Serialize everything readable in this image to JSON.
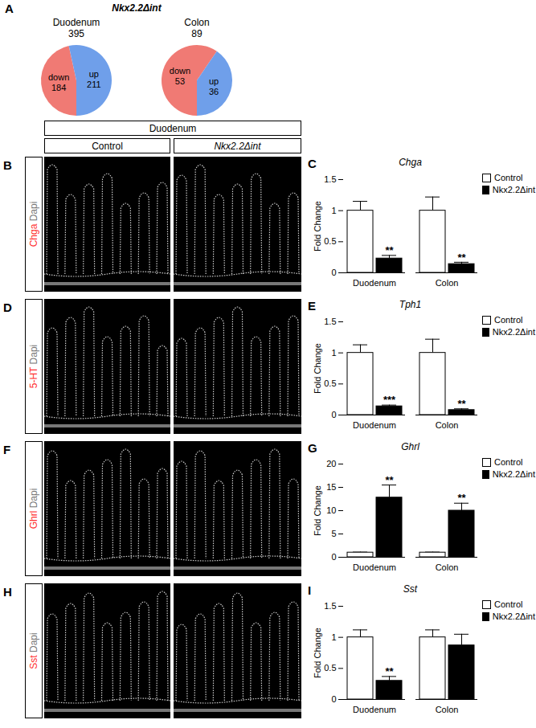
{
  "panel_a": {
    "panel": "A",
    "title": "Nkx2.2Δint"
  },
  "image_panels": {
    "section_title": "Duodenum",
    "columns": [
      "Control",
      "Nkx2.2Δint"
    ],
    "rows": [
      {
        "panel": "B",
        "stain": "Chga",
        "counterstain": "Dapi",
        "stain_color": "#ff3030"
      },
      {
        "panel": "D",
        "stain": "5-HT",
        "counterstain": "Dapi",
        "stain_color": "#ff3030"
      },
      {
        "panel": "F",
        "stain": "Ghrl",
        "counterstain": "Dapi",
        "stain_color": "#ff3030"
      },
      {
        "panel": "H",
        "stain": "Sst",
        "counterstain": "Dapi",
        "stain_color": "#ff3030"
      }
    ]
  },
  "chart_data": [
    {
      "type": "pie",
      "title": "Duodenum",
      "total": 395,
      "categories": [
        "down",
        "up"
      ],
      "values": [
        184,
        211
      ],
      "colors": [
        "#f07a74",
        "#6f9fea"
      ],
      "data_labels": true
    },
    {
      "type": "pie",
      "title": "Colon",
      "total": 89,
      "categories": [
        "down",
        "up"
      ],
      "values": [
        53,
        36
      ],
      "colors": [
        "#f07a74",
        "#6f9fea"
      ],
      "data_labels": true
    },
    {
      "type": "bar",
      "panel": "C",
      "title": "Chga",
      "ylabel": "Fold Change",
      "categories": [
        "Duodenum",
        "Colon"
      ],
      "series": [
        {
          "name": "Control",
          "color": "#ffffff",
          "values": [
            1,
            1
          ],
          "errors": [
            0.15,
            0.22
          ]
        },
        {
          "name": "Nkx2.2Δint",
          "color": "#000000",
          "values": [
            0.23,
            0.14
          ],
          "errors": [
            0.05,
            0.03
          ],
          "significance": [
            "**",
            "**"
          ]
        }
      ],
      "ylim": [
        0,
        1.5
      ],
      "yticks": [
        0,
        0.5,
        1,
        1.5
      ],
      "legend": "top-right"
    },
    {
      "type": "bar",
      "panel": "E",
      "title": "Tph1",
      "ylabel": "Fold Change",
      "categories": [
        "Duodenum",
        "Colon"
      ],
      "series": [
        {
          "name": "Control",
          "color": "#ffffff",
          "values": [
            1,
            1
          ],
          "errors": [
            0.13,
            0.22
          ]
        },
        {
          "name": "Nkx2.2Δint",
          "color": "#000000",
          "values": [
            0.14,
            0.08
          ],
          "errors": [
            0.02,
            0.02
          ],
          "significance": [
            "***",
            "**"
          ]
        }
      ],
      "ylim": [
        0,
        1.5
      ],
      "yticks": [
        0,
        0.5,
        1,
        1.5
      ],
      "legend": "top-right"
    },
    {
      "type": "bar",
      "panel": "G",
      "title": "Ghrl",
      "ylabel": "Fold Change",
      "categories": [
        "Duodenum",
        "Colon"
      ],
      "series": [
        {
          "name": "Control",
          "color": "#ffffff",
          "values": [
            1,
            1
          ],
          "errors": [
            0.1,
            0.1
          ]
        },
        {
          "name": "Nkx2.2Δint",
          "color": "#000000",
          "values": [
            12.8,
            10
          ],
          "errors": [
            2.7,
            1.6
          ],
          "significance": [
            "**",
            "**"
          ]
        }
      ],
      "ylim": [
        0,
        20
      ],
      "yticks": [
        0,
        5,
        10,
        15,
        20
      ],
      "legend": "top-right"
    },
    {
      "type": "bar",
      "panel": "I",
      "title": "Sst",
      "ylabel": "Fold Change",
      "categories": [
        "Duodenum",
        "Colon"
      ],
      "series": [
        {
          "name": "Control",
          "color": "#ffffff",
          "values": [
            1,
            1
          ],
          "errors": [
            0.12,
            0.12
          ]
        },
        {
          "name": "Nkx2.2Δint",
          "color": "#000000",
          "values": [
            0.3,
            0.87
          ],
          "errors": [
            0.07,
            0.18
          ],
          "significance": [
            "**",
            null
          ]
        }
      ],
      "ylim": [
        0,
        1.5
      ],
      "yticks": [
        0,
        0.5,
        1,
        1.5
      ],
      "legend": "top-right"
    }
  ]
}
